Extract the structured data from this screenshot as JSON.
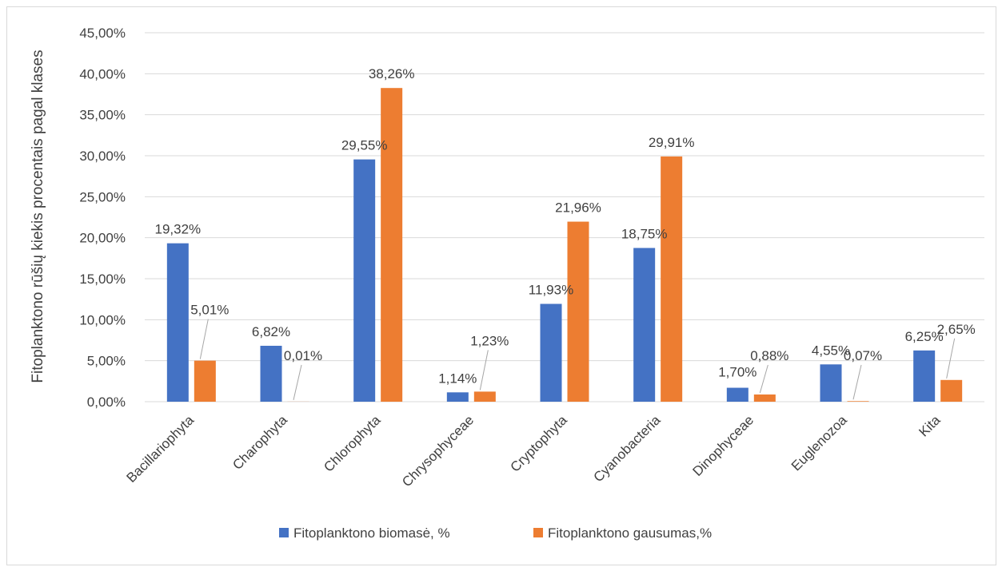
{
  "chart_data": {
    "type": "bar",
    "ylabel": "Fitoplanktono rūšių kiekis procentais pagal klases",
    "xlabel": "",
    "ylim": [
      0,
      45
    ],
    "yticks": [
      "0,00%",
      "5,00%",
      "10,00%",
      "15,00%",
      "20,00%",
      "25,00%",
      "30,00%",
      "35,00%",
      "40,00%",
      "45,00%"
    ],
    "grid": true,
    "legend_position": "bottom",
    "categories": [
      "Bacillariophyta",
      "Charophyta",
      "Chlorophyta",
      "Chrysophyceae",
      "Cryptophyta",
      "Cyanobacteria",
      "Dinophyceae",
      "Euglenozoa",
      "Kita"
    ],
    "series": [
      {
        "name": "Fitoplanktono biomasė, %",
        "color": "#4472c4",
        "values": [
          19.32,
          6.82,
          29.55,
          1.14,
          11.93,
          18.75,
          1.7,
          4.55,
          6.25
        ],
        "labels": [
          "19,32%",
          "6,82%",
          "29,55%",
          "1,14%",
          "11,93%",
          "18,75%",
          "1,70%",
          "4,55%",
          "6,25%"
        ]
      },
      {
        "name": "Fitoplanktono gausumas,%",
        "color": "#ed7d31",
        "values": [
          5.01,
          0.01,
          38.26,
          1.23,
          21.96,
          29.91,
          0.88,
          0.07,
          2.65
        ],
        "labels": [
          "5,01%",
          "0,01%",
          "38,26%",
          "1,23%",
          "21,96%",
          "29,91%",
          "0,88%",
          "0,07%",
          "2,65%"
        ]
      }
    ]
  }
}
